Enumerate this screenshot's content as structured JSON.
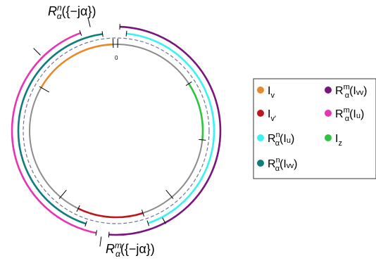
{
  "diagram": {
    "top_label": "Rⁿα({−jα})",
    "top_label_parts": {
      "base": "R",
      "sup": "n",
      "sub": "α",
      "rest": "({−jα})"
    },
    "bottom_label_parts": {
      "base": "R",
      "sup": "m",
      "sub": "α",
      "rest": "({−jα})"
    },
    "zero_label": "0"
  },
  "legend": {
    "items": [
      {
        "base": "I",
        "sub": "v",
        "sup": "",
        "rest": "",
        "color": "#e8892b",
        "color_name": "orange"
      },
      {
        "base": "I",
        "sub": "v'",
        "sup": "",
        "rest": "",
        "color": "#c0161b",
        "color_name": "red"
      },
      {
        "base": "R",
        "sup": "n",
        "sub": "α",
        "rest": "(Iᵤ)",
        "color": "#3af2f2",
        "color_name": "cyan"
      },
      {
        "base": "R",
        "sup": "n",
        "sub": "α",
        "rest": "(Iᵥᵥ)",
        "color": "#107d7d",
        "color_name": "teal"
      },
      {
        "base": "R",
        "sup": "m",
        "sub": "α",
        "rest": "(Iᵥᵥ)",
        "color": "#7a147e",
        "color_name": "purple"
      },
      {
        "base": "R",
        "sup": "m",
        "sub": "α",
        "rest": "(Iᵤ)",
        "color": "#e833b4",
        "color_name": "magenta"
      },
      {
        "base": "I",
        "sub": "z",
        "sup": "",
        "rest": "",
        "color": "#2fc43f",
        "color_name": "green"
      }
    ]
  },
  "colors": {
    "base_circle": "#8c8c8c",
    "dashed_circle": "#6f7590"
  }
}
